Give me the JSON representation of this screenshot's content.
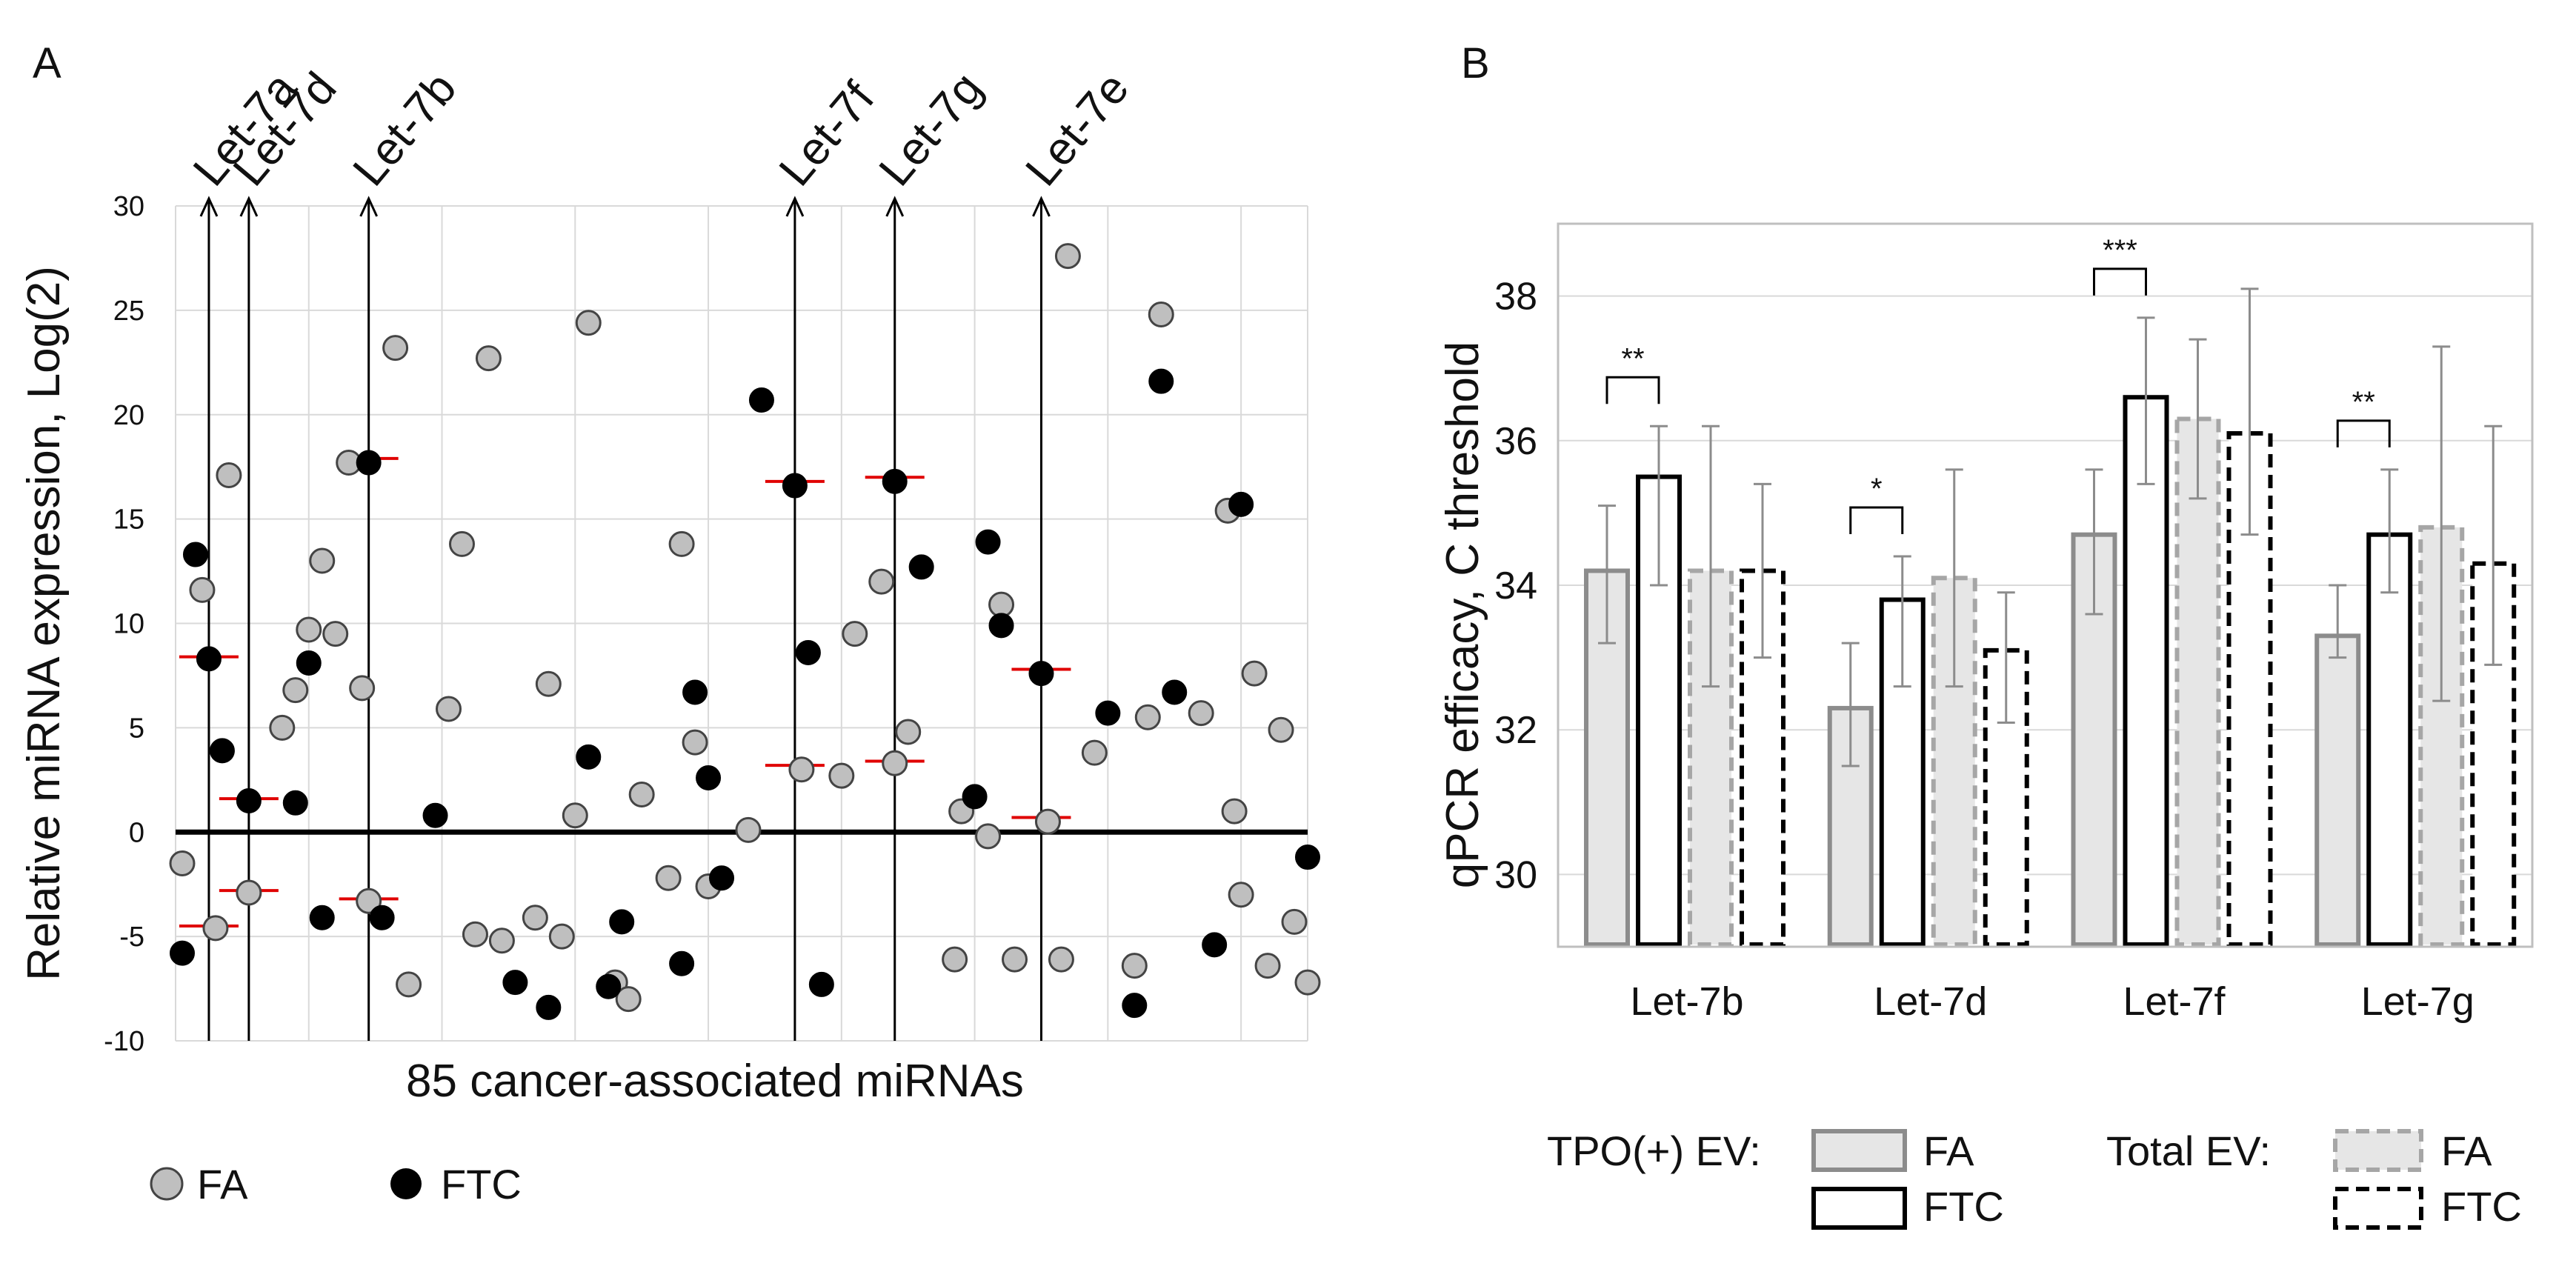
{
  "colors": {
    "fa_fill": "#bfbfbf",
    "ftc_fill": "#000000",
    "marker": "#e00000",
    "bar_fa_tpo_fill": "#e6e6e6",
    "bar_fa_tpo_stroke": "#8c8c8c",
    "bar_ftc_stroke": "#000000",
    "bar_fa_total_stroke": "#a6a6a6",
    "error_bar": "#8c8c8c"
  },
  "chart_data": [
    {
      "id": "A",
      "type": "scatter",
      "panel_label": "A",
      "xlabel": "85 cancer-associated miRNAs",
      "ylabel": "Relative miRNA expression,   Log(2)",
      "ylim": [
        -10,
        30
      ],
      "yticks": [
        -10,
        -5,
        0,
        5,
        10,
        15,
        20,
        25,
        30
      ],
      "xlim": [
        0,
        85
      ],
      "grid": true,
      "baseline": 0,
      "legend_position": "bottom-left",
      "legend": [
        {
          "key": "FA",
          "label": "FA"
        },
        {
          "key": "FTC",
          "label": "FTC"
        }
      ],
      "annotations": [
        {
          "label": "Let-7a",
          "x": 2.5
        },
        {
          "label": "Let-7d",
          "x": 5.5
        },
        {
          "label": "Let-7b",
          "x": 14.5
        },
        {
          "label": "Let-7f",
          "x": 46.5
        },
        {
          "label": "Let-7g",
          "x": 54
        },
        {
          "label": "Let-7e",
          "x": 65
        }
      ],
      "median_markers": [
        {
          "x": 2.5,
          "y": 8.4
        },
        {
          "x": 2.5,
          "y": -4.5
        },
        {
          "x": 5.5,
          "y": 1.6
        },
        {
          "x": 5.5,
          "y": -2.8
        },
        {
          "x": 14.5,
          "y": 17.9
        },
        {
          "x": 14.5,
          "y": -3.2
        },
        {
          "x": 46.5,
          "y": 16.8
        },
        {
          "x": 46.5,
          "y": 3.2
        },
        {
          "x": 54,
          "y": 17.0
        },
        {
          "x": 54,
          "y": 3.4
        },
        {
          "x": 65,
          "y": 7.8
        },
        {
          "x": 65,
          "y": 0.7
        }
      ],
      "series": [
        {
          "name": "FA",
          "points": [
            [
              0.5,
              -1.5
            ],
            [
              2,
              11.6
            ],
            [
              3,
              -4.6
            ],
            [
              4,
              17.1
            ],
            [
              5.5,
              -2.9
            ],
            [
              8,
              5.0
            ],
            [
              9,
              6.8
            ],
            [
              10,
              9.7
            ],
            [
              11,
              13.0
            ],
            [
              12,
              9.5
            ],
            [
              13,
              17.7
            ],
            [
              14,
              6.9
            ],
            [
              14.5,
              -3.3
            ],
            [
              16.5,
              23.2
            ],
            [
              17.5,
              -7.3
            ],
            [
              20.5,
              5.9
            ],
            [
              21.5,
              13.8
            ],
            [
              22.5,
              -4.9
            ],
            [
              23.5,
              22.7
            ],
            [
              24.5,
              -5.2
            ],
            [
              27,
              -4.1
            ],
            [
              28,
              7.1
            ],
            [
              29,
              -5.0
            ],
            [
              30,
              0.8
            ],
            [
              31,
              24.4
            ],
            [
              33,
              -7.2
            ],
            [
              34,
              -8.0
            ],
            [
              35,
              1.8
            ],
            [
              37,
              -2.2
            ],
            [
              38,
              13.8
            ],
            [
              39,
              4.3
            ],
            [
              40,
              -2.6
            ],
            [
              43,
              0.1
            ],
            [
              47,
              3.0
            ],
            [
              50,
              2.7
            ],
            [
              51,
              9.5
            ],
            [
              53,
              12.0
            ],
            [
              54,
              3.3
            ],
            [
              55,
              4.8
            ],
            [
              58.5,
              -6.1
            ],
            [
              59,
              1.0
            ],
            [
              61,
              -0.2
            ],
            [
              62,
              10.9
            ],
            [
              63,
              -6.1
            ],
            [
              65.5,
              0.5
            ],
            [
              66.5,
              -6.1
            ],
            [
              67,
              27.6
            ],
            [
              69,
              3.8
            ],
            [
              72,
              -6.4
            ],
            [
              73,
              5.5
            ],
            [
              74,
              24.8
            ],
            [
              77,
              5.7
            ],
            [
              79,
              15.4
            ],
            [
              79.5,
              1.0
            ],
            [
              80,
              -3.0
            ],
            [
              81,
              7.6
            ],
            [
              82,
              -6.4
            ],
            [
              83,
              4.9
            ],
            [
              84,
              -4.3
            ],
            [
              85,
              -7.2
            ]
          ]
        },
        {
          "name": "FTC",
          "points": [
            [
              0.5,
              -5.8
            ],
            [
              1.5,
              13.3
            ],
            [
              2.5,
              8.3
            ],
            [
              3.5,
              3.9
            ],
            [
              5.5,
              1.5
            ],
            [
              9,
              1.4
            ],
            [
              10,
              8.1
            ],
            [
              11,
              -4.1
            ],
            [
              14.5,
              17.7
            ],
            [
              15.5,
              -4.1
            ],
            [
              19.5,
              0.8
            ],
            [
              25.5,
              -7.2
            ],
            [
              28,
              -8.4
            ],
            [
              31,
              3.6
            ],
            [
              32.5,
              -7.4
            ],
            [
              33.5,
              -4.3
            ],
            [
              38,
              -6.3
            ],
            [
              39,
              6.7
            ],
            [
              40,
              2.6
            ],
            [
              41,
              -2.2
            ],
            [
              44,
              20.7
            ],
            [
              46.5,
              16.6
            ],
            [
              47.5,
              8.6
            ],
            [
              48.5,
              -7.3
            ],
            [
              54,
              16.8
            ],
            [
              56,
              12.7
            ],
            [
              60,
              1.7
            ],
            [
              61,
              13.9
            ],
            [
              62,
              9.9
            ],
            [
              65,
              7.6
            ],
            [
              70,
              5.7
            ],
            [
              72,
              -8.3
            ],
            [
              74,
              21.6
            ],
            [
              75,
              6.7
            ],
            [
              78,
              -5.4
            ],
            [
              80,
              15.7
            ],
            [
              85,
              -1.2
            ]
          ]
        }
      ]
    },
    {
      "id": "B",
      "type": "bar",
      "panel_label": "B",
      "ylabel": "qPCR efficacy, C threshold",
      "ylim": [
        29,
        39
      ],
      "yticks": [
        30,
        32,
        34,
        36,
        38
      ],
      "grid": true,
      "categories": [
        "Let-7b",
        "Let-7d",
        "Let-7f",
        "Let-7g"
      ],
      "legend_position": "bottom",
      "legend": {
        "tpo_label": "TPO(+)  EV:",
        "total_label": "Total EV:",
        "fa_label": "FA",
        "ftc_label": "FTC"
      },
      "series": [
        {
          "name": "TPO(+) EV FA",
          "values": [
            34.2,
            32.3,
            34.7,
            33.3
          ],
          "err_low": [
            33.2,
            31.5,
            33.6,
            33.0
          ],
          "err_high": [
            35.1,
            33.2,
            35.6,
            34.0
          ]
        },
        {
          "name": "TPO(+) EV FTC",
          "values": [
            35.5,
            33.8,
            36.6,
            34.7
          ],
          "err_low": [
            34.0,
            32.6,
            35.4,
            33.9
          ],
          "err_high": [
            36.2,
            34.4,
            37.7,
            35.6
          ]
        },
        {
          "name": "Total EV FA",
          "values": [
            34.2,
            34.1,
            36.3,
            34.8
          ],
          "err_low": [
            32.6,
            32.6,
            35.2,
            32.4
          ],
          "err_high": [
            36.2,
            35.6,
            37.4,
            37.3
          ]
        },
        {
          "name": "Total EV FTC",
          "values": [
            34.2,
            33.1,
            36.1,
            34.3
          ],
          "err_low": [
            33.0,
            32.1,
            34.7,
            32.9
          ],
          "err_high": [
            35.4,
            33.9,
            38.1,
            36.2
          ]
        }
      ],
      "significance": [
        {
          "category": 0,
          "label": "**"
        },
        {
          "category": 1,
          "label": "*"
        },
        {
          "category": 2,
          "label": "***"
        },
        {
          "category": 3,
          "label": "**"
        }
      ]
    }
  ]
}
